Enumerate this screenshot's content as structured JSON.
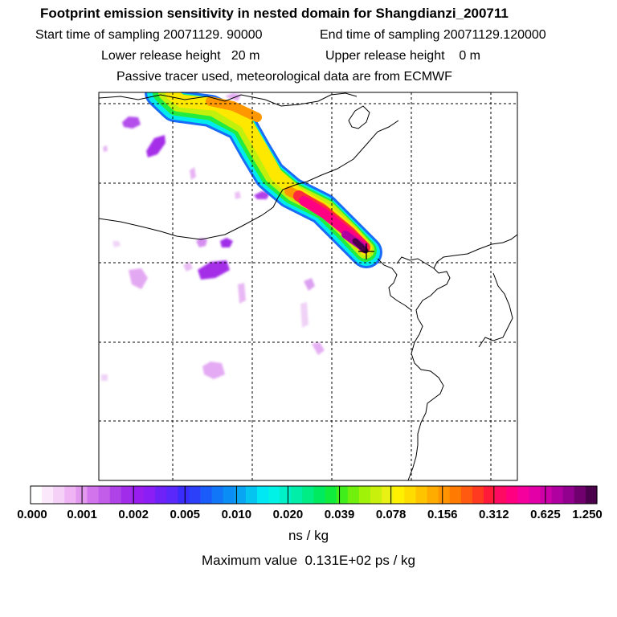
{
  "header": {
    "title": "Footprint emission sensitivity in nested domain for Shangdianzi_200711",
    "start_label": "Start time of sampling 20071129. 90000",
    "end_label": "End time of sampling 20071129.120000",
    "lower_label": "Lower release height   20 m",
    "upper_label": "Upper release height    0 m",
    "tracer_label": "Passive tracer used, meteorological data are from ECMWF"
  },
  "chart_data": {
    "type": "heatmap",
    "title": "Footprint emission sensitivity in nested domain for Shangdianzi_200711",
    "units": "ns / kg",
    "max_value_text": "Maximum value  0.131E+02 ps / kg",
    "colorbar_ticks": [
      "0.000",
      "0.001",
      "0.002",
      "0.005",
      "0.010",
      "0.020",
      "0.039",
      "0.078",
      "0.156",
      "0.312",
      "0.625",
      "1.250"
    ],
    "colorbar_colors": [
      "#ffffff",
      "#fbe8fb",
      "#f5d0f7",
      "#eeb4f4",
      "#e398f0",
      "#d275ec",
      "#c15de8",
      "#b043e8",
      "#a12cea",
      "#9a1df0",
      "#8a1ef5",
      "#6e22f7",
      "#5a28fa",
      "#3a2cfa",
      "#2c40fa",
      "#1a5cfa",
      "#1276f8",
      "#0a8ef5",
      "#08a6f2",
      "#06c4f0",
      "#00e8f4",
      "#00f2e6",
      "#00f0c8",
      "#00eea8",
      "#00ec84",
      "#00ea60",
      "#10ec3c",
      "#40ee1c",
      "#70f00c",
      "#a0f208",
      "#c8f00c",
      "#e8f014",
      "#fff000",
      "#ffdc00",
      "#ffc400",
      "#ffac00",
      "#ff9400",
      "#ff7a00",
      "#ff5a10",
      "#ff3a20",
      "#ff1a3a",
      "#ff0a62",
      "#ff0080",
      "#f5009c",
      "#e300a6",
      "#cc00a6",
      "#b000a0",
      "#92008e",
      "#70006e",
      "#4a004a"
    ],
    "station_marker": "Shangdianzi",
    "grid": true
  }
}
